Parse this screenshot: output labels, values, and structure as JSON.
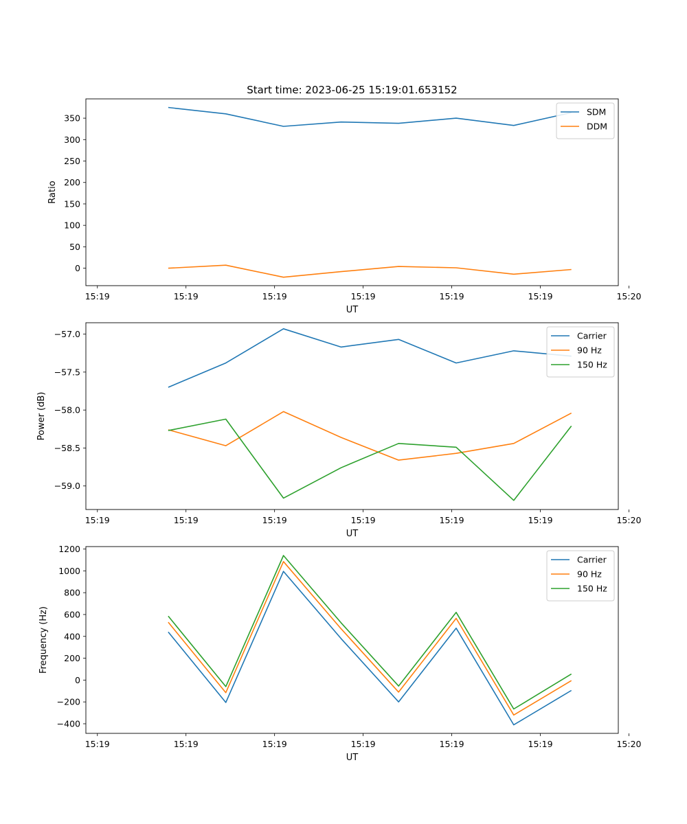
{
  "title": "Start time: 2023-06-25 15:19:01.653152",
  "colors": {
    "c1": "#1f77b4",
    "c2": "#ff7f0e",
    "c3": "#2ca02c"
  },
  "chart_data": [
    {
      "type": "line",
      "xlabel": "UT",
      "ylabel": "Ratio",
      "x": [
        0.8,
        1.45,
        2.1,
        2.75,
        3.4,
        4.05,
        4.7,
        5.35
      ],
      "xlim": [
        -0.13,
        5.88
      ],
      "xticks": [
        0,
        1,
        2,
        3,
        4,
        5,
        6
      ],
      "xtick_labels": [
        "15:19",
        "15:19",
        "15:19",
        "15:19",
        "15:19",
        "15:19",
        "15:20"
      ],
      "ylim": [
        -40.7,
        395
      ],
      "yticks": [
        0,
        50,
        100,
        150,
        200,
        250,
        300,
        350
      ],
      "ytick_labels": [
        "0",
        "50",
        "100",
        "150",
        "200",
        "250",
        "300",
        "350"
      ],
      "legend": "top-right",
      "series": [
        {
          "name": "SDM",
          "color": "#1f77b4",
          "values": [
            375,
            360,
            331,
            341,
            338,
            350,
            333,
            363
          ]
        },
        {
          "name": "DDM",
          "color": "#ff7f0e",
          "values": [
            0,
            7,
            -21,
            -8,
            4,
            1,
            -14,
            -3
          ]
        }
      ]
    },
    {
      "type": "line",
      "xlabel": "UT",
      "ylabel": "Power (dB)",
      "x": [
        0.8,
        1.45,
        2.1,
        2.75,
        3.4,
        4.05,
        4.7,
        5.35
      ],
      "xlim": [
        -0.13,
        5.88
      ],
      "xticks": [
        0,
        1,
        2,
        3,
        4,
        5,
        6
      ],
      "xtick_labels": [
        "15:19",
        "15:19",
        "15:19",
        "15:19",
        "15:19",
        "15:19",
        "15:20"
      ],
      "ylim": [
        -59.31,
        -56.85
      ],
      "yticks": [
        -59.0,
        -58.5,
        -58.0,
        -57.5,
        -57.0
      ],
      "ytick_labels": [
        "−59.0",
        "−58.5",
        "−58.0",
        "−57.5",
        "−57.0"
      ],
      "legend": "top-right",
      "series": [
        {
          "name": "Carrier",
          "color": "#1f77b4",
          "values": [
            -57.7,
            -57.38,
            -56.93,
            -57.17,
            -57.07,
            -57.38,
            -57.22,
            -57.29
          ]
        },
        {
          "name": "90 Hz",
          "color": "#ff7f0e",
          "values": [
            -58.26,
            -58.47,
            -58.02,
            -58.36,
            -58.66,
            -58.57,
            -58.44,
            -58.04
          ]
        },
        {
          "name": "150 Hz",
          "color": "#2ca02c",
          "values": [
            -58.27,
            -58.12,
            -59.16,
            -58.76,
            -58.44,
            -58.49,
            -59.19,
            -58.21
          ]
        }
      ]
    },
    {
      "type": "line",
      "xlabel": "UT",
      "ylabel": "Frequency (Hz)",
      "x": [
        0.8,
        1.45,
        2.1,
        2.75,
        3.4,
        4.05,
        4.7,
        5.35
      ],
      "xlim": [
        -0.13,
        5.88
      ],
      "xticks": [
        0,
        1,
        2,
        3,
        4,
        5,
        6
      ],
      "xtick_labels": [
        "15:19",
        "15:19",
        "15:19",
        "15:19",
        "15:19",
        "15:19",
        "15:20"
      ],
      "ylim": [
        -488,
        1222
      ],
      "yticks": [
        -400,
        -200,
        0,
        200,
        400,
        600,
        800,
        1000,
        1200
      ],
      "ytick_labels": [
        "−400",
        "−200",
        "0",
        "200",
        "400",
        "600",
        "800",
        "1000",
        "1200"
      ],
      "legend": "top-right",
      "series": [
        {
          "name": "Carrier",
          "color": "#1f77b4",
          "values": [
            440,
            -205,
            995,
            380,
            -200,
            475,
            -410,
            -95
          ]
        },
        {
          "name": "90 Hz",
          "color": "#ff7f0e",
          "values": [
            530,
            -115,
            1085,
            470,
            -110,
            565,
            -320,
            -5
          ]
        },
        {
          "name": "150 Hz",
          "color": "#2ca02c",
          "values": [
            585,
            -60,
            1140,
            525,
            -55,
            620,
            -265,
            55
          ]
        }
      ]
    }
  ]
}
